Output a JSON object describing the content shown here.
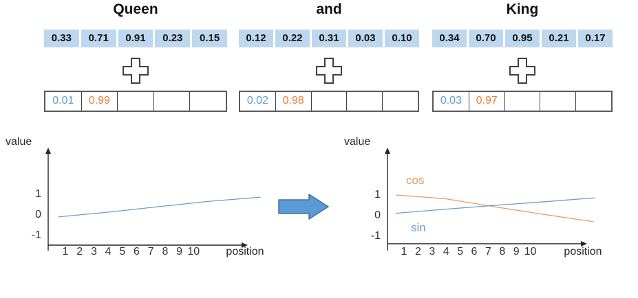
{
  "accent": {
    "blue": "#5B9BD5",
    "orange": "#ED7D31",
    "cell_bg": "#BDD7EE",
    "sin_line": "#6f9bc8",
    "cos_line": "#e8995f",
    "arrow_fill": "#5B9BD5",
    "arrow_border": "#41719C",
    "axis": "#262626"
  },
  "columns": [
    {
      "word": "Queen",
      "embedding": [
        "0.33",
        "0.71",
        "0.91",
        "0.23",
        "0.15"
      ],
      "positional": [
        "0.01",
        "0.99",
        "",
        "",
        ""
      ]
    },
    {
      "word": "and",
      "embedding": [
        "0.12",
        "0.22",
        "0.31",
        "0.03",
        "0.10"
      ],
      "positional": [
        "0.02",
        "0.98",
        "",
        "",
        ""
      ]
    },
    {
      "word": "King",
      "embedding": [
        "0.34",
        "0.70",
        "0.95",
        "0.21",
        "0.17"
      ],
      "positional": [
        "0.03",
        "0.97",
        "",
        "",
        ""
      ]
    }
  ],
  "chart_data": [
    {
      "type": "line",
      "title": "",
      "ylabel": "value",
      "xlabel": "position",
      "yticks": [
        "1",
        "0",
        "-1"
      ],
      "xticks": [
        "1",
        "2",
        "3",
        "4",
        "5",
        "6",
        "7",
        "8",
        "9",
        "10"
      ],
      "ylim": [
        -1,
        1.5
      ],
      "grid": false,
      "series": [
        {
          "name": "sin",
          "label_visible": false,
          "color": "#6f9bc8",
          "points": [
            [
              0.5,
              -0.13
            ],
            [
              4,
              0.1
            ],
            [
              7.6,
              0.37
            ],
            [
              11,
              0.62
            ],
            [
              14.7,
              0.83
            ]
          ]
        }
      ]
    },
    {
      "type": "line",
      "title": "",
      "ylabel": "value",
      "xlabel": "position",
      "yticks": [
        "1",
        "0",
        "-1"
      ],
      "xticks": [
        "1",
        "2",
        "3",
        "4",
        "5",
        "6",
        "7",
        "8",
        "9",
        "10"
      ],
      "ylim": [
        -1,
        1.5
      ],
      "grid": false,
      "series": [
        {
          "name": "cos",
          "label_visible": true,
          "color": "#e8995f",
          "points": [
            [
              0.4,
              0.97
            ],
            [
              4,
              0.78
            ],
            [
              7.6,
              0.38
            ],
            [
              11,
              0.02
            ],
            [
              14.5,
              -0.33
            ]
          ]
        },
        {
          "name": "sin",
          "label_visible": true,
          "color": "#6f9bc8",
          "points": [
            [
              0.4,
              0.08
            ],
            [
              4,
              0.28
            ],
            [
              7.6,
              0.47
            ],
            [
              11,
              0.64
            ],
            [
              14.6,
              0.83
            ]
          ]
        }
      ]
    }
  ]
}
